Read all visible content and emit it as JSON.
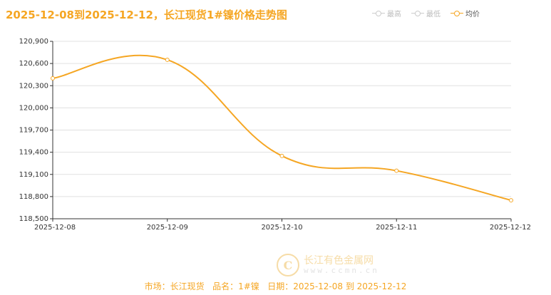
{
  "title": "2025-12-08到2025-12-12，长江现货1#镍价格走势图",
  "legend": [
    {
      "label": "最高",
      "active": false
    },
    {
      "label": "最低",
      "active": false
    },
    {
      "label": "均价",
      "active": true
    }
  ],
  "colors": {
    "accent": "#f5a623",
    "grid": "#e0e0e0",
    "axis": "#333333",
    "inactive": "#cccccc"
  },
  "watermark": {
    "cn": "长江有色金属网",
    "url": "www.ccmn.cn",
    "logo_icon": "ccmn-logo-icon"
  },
  "footer": {
    "market_label": "市场：",
    "market_value": "长江现货",
    "product_label": "品名：",
    "product_value": "1#镍",
    "date_label": "日期：",
    "date_value": "2025-12-08 到 2025-12-12"
  },
  "chart_data": {
    "type": "line",
    "title": "2025-12-08到2025-12-12，长江现货1#镍价格走势图",
    "xlabel": "",
    "ylabel": "",
    "categories": [
      "2025-12-08",
      "2025-12-09",
      "2025-12-10",
      "2025-12-11",
      "2025-12-12"
    ],
    "series": [
      {
        "name": "均价",
        "values": [
          120400,
          120650,
          119350,
          119150,
          118750
        ]
      }
    ],
    "ylim": [
      118500,
      120900
    ],
    "yticks": [
      118500,
      118800,
      119100,
      119400,
      119700,
      120000,
      120300,
      120600,
      120900
    ],
    "ytick_labels": [
      "118,500",
      "118,800",
      "119,100",
      "119,400",
      "119,700",
      "120,000",
      "120,300",
      "120,600",
      "120,900"
    ],
    "grid": true,
    "legend_position": "top-right"
  }
}
